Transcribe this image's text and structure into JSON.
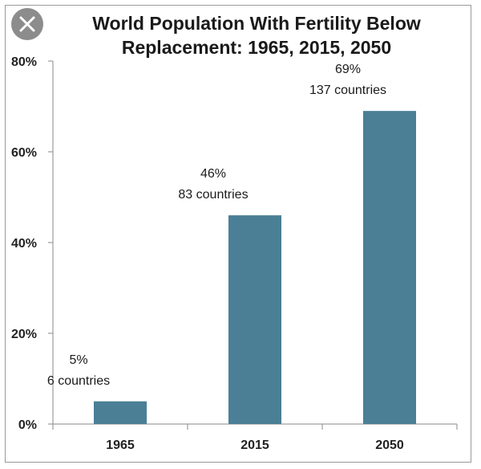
{
  "close_button": {
    "icon": "close-icon",
    "color": "#8c8c8c"
  },
  "chart_data": {
    "type": "bar",
    "title_lines": [
      "World Population With Fertility Below",
      "Replacement: 1965, 2015, 2050"
    ],
    "categories": [
      "1965",
      "2015",
      "2050"
    ],
    "values": [
      5,
      46,
      69
    ],
    "annotations": [
      [
        "5%",
        "6 countries"
      ],
      [
        "46%",
        "83 countries"
      ],
      [
        "69%",
        "137 countries"
      ]
    ],
    "ylim": [
      0,
      80
    ],
    "yticks": [
      0,
      20,
      40,
      60,
      80
    ],
    "ytick_labels": [
      "0%",
      "20%",
      "40%",
      "60%",
      "80%"
    ],
    "xlabel": "",
    "ylabel": "",
    "grid": false,
    "bar_color": "#4a7f96"
  }
}
